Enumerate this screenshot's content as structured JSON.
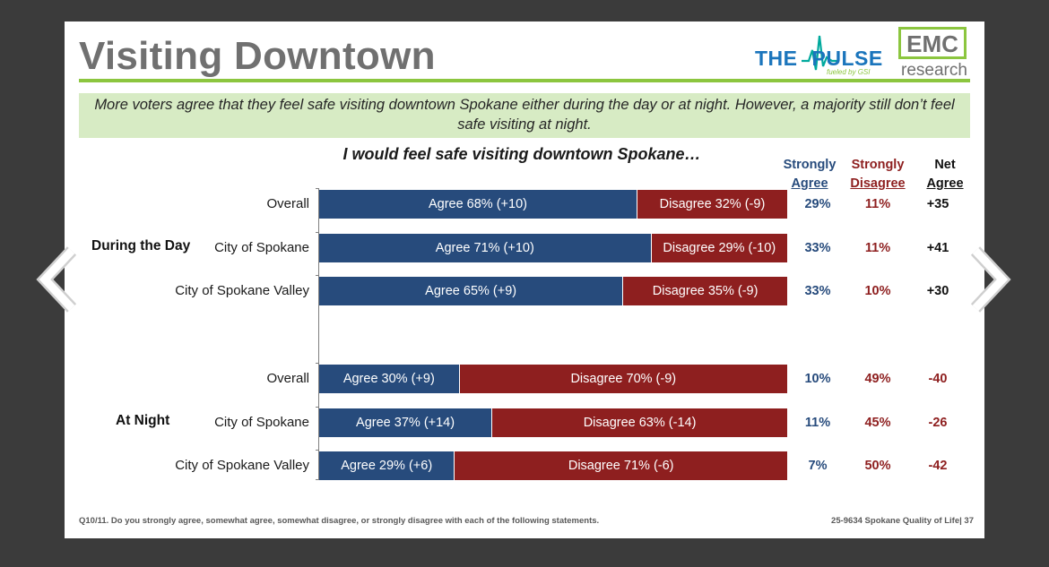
{
  "slide": {
    "title": "Visiting Downtown",
    "subtitle": "More voters agree that they feel safe visiting downtown Spokane either during the day or at night. However, a majority still don’t feel safe visiting at night.",
    "footer_question": "Q10/11. Do you strongly agree, somewhat agree, somewhat disagree, or strongly disagree with each of the following statements.",
    "footer_right": "25-9634 Spokane Quality of Life| 37"
  },
  "logos": {
    "pulse_the": "THE",
    "pulse_name": "PULSE",
    "pulse_sub": "fueled by GSI",
    "emc": "EMC",
    "research": "research"
  },
  "columns": {
    "strongly_agree": [
      "Strongly",
      "Agree"
    ],
    "strongly_disagree": [
      "Strongly",
      "Disagree"
    ],
    "net_agree": [
      "Net",
      "Agree"
    ]
  },
  "colors": {
    "agree": "#274b7c",
    "disagree": "#8e1f1f",
    "accent_green": "#8cc63f",
    "subtitle_bg": "#d7ebc4"
  },
  "chart_data": {
    "type": "bar",
    "orientation": "horizontal",
    "stacked": true,
    "title": "I would feel safe visiting downtown Spokane…",
    "xlim": [
      0,
      100
    ],
    "groups": [
      {
        "label": "During the Day",
        "rows": [
          {
            "category": "Overall",
            "agree": 68,
            "agree_label": "Agree 68% (+10)",
            "disagree": 32,
            "disagree_label": "Disagree 32% (-9)",
            "strongly_agree": "29%",
            "strongly_disagree": "11%",
            "net_agree": "+35"
          },
          {
            "category": "City of Spokane",
            "agree": 71,
            "agree_label": "Agree 71% (+10)",
            "disagree": 29,
            "disagree_label": "Disagree 29% (-10)",
            "strongly_agree": "33%",
            "strongly_disagree": "11%",
            "net_agree": "+41"
          },
          {
            "category": "City of Spokane Valley",
            "agree": 65,
            "agree_label": "Agree 65% (+9)",
            "disagree": 35,
            "disagree_label": "Disagree 35% (-9)",
            "strongly_agree": "33%",
            "strongly_disagree": "10%",
            "net_agree": "+30"
          }
        ]
      },
      {
        "label": "At Night",
        "rows": [
          {
            "category": "Overall",
            "agree": 30,
            "agree_label": "Agree 30% (+9)",
            "disagree": 70,
            "disagree_label": "Disagree 70% (-9)",
            "strongly_agree": "10%",
            "strongly_disagree": "49%",
            "net_agree": "-40"
          },
          {
            "category": "City of Spokane",
            "agree": 37,
            "agree_label": "Agree 37% (+14)",
            "disagree": 63,
            "disagree_label": "Disagree 63% (-14)",
            "strongly_agree": "11%",
            "strongly_disagree": "45%",
            "net_agree": "-26"
          },
          {
            "category": "City of Spokane Valley",
            "agree": 29,
            "agree_label": "Agree 29% (+6)",
            "disagree": 71,
            "disagree_label": "Disagree 71% (-6)",
            "strongly_agree": "7%",
            "strongly_disagree": "50%",
            "net_agree": "-42"
          }
        ]
      }
    ]
  }
}
